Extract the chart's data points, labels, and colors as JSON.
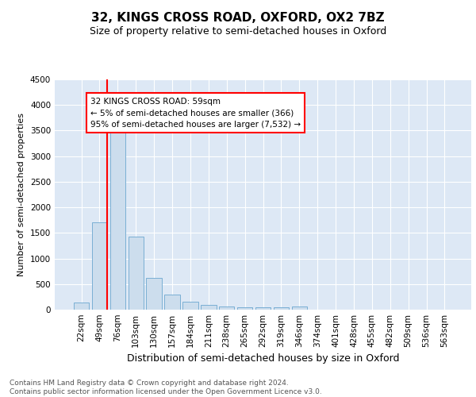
{
  "title1": "32, KINGS CROSS ROAD, OXFORD, OX2 7BZ",
  "title2": "Size of property relative to semi-detached houses in Oxford",
  "xlabel": "Distribution of semi-detached houses by size in Oxford",
  "ylabel": "Number of semi-detached properties",
  "categories": [
    "22sqm",
    "49sqm",
    "76sqm",
    "103sqm",
    "130sqm",
    "157sqm",
    "184sqm",
    "211sqm",
    "238sqm",
    "265sqm",
    "292sqm",
    "319sqm",
    "346sqm",
    "374sqm",
    "401sqm",
    "428sqm",
    "455sqm",
    "482sqm",
    "509sqm",
    "536sqm",
    "563sqm"
  ],
  "values": [
    140,
    1700,
    3490,
    1430,
    620,
    290,
    160,
    90,
    65,
    50,
    50,
    40,
    55,
    0,
    0,
    0,
    0,
    0,
    0,
    0,
    0
  ],
  "bar_color": "#ccdded",
  "bar_edge_color": "#7aafd4",
  "red_line_index": 1,
  "annotation_text": "32 KINGS CROSS ROAD: 59sqm\n← 5% of semi-detached houses are smaller (366)\n95% of semi-detached houses are larger (7,532) →",
  "annotation_box_color": "white",
  "annotation_box_edge_color": "red",
  "red_line_color": "red",
  "ylim": [
    0,
    4500
  ],
  "yticks": [
    0,
    500,
    1000,
    1500,
    2000,
    2500,
    3000,
    3500,
    4000,
    4500
  ],
  "footer": "Contains HM Land Registry data © Crown copyright and database right 2024.\nContains public sector information licensed under the Open Government Licence v3.0.",
  "bg_color": "#dde8f5",
  "title1_fontsize": 11,
  "title2_fontsize": 9,
  "xlabel_fontsize": 9,
  "ylabel_fontsize": 8,
  "tick_fontsize": 7.5,
  "footer_fontsize": 6.5,
  "annot_fontsize": 7.5
}
